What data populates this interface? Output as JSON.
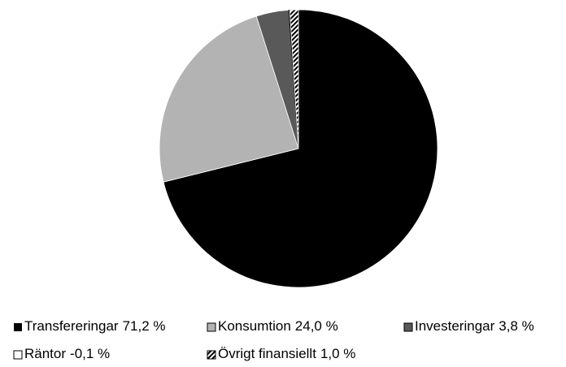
{
  "chart_data": {
    "type": "pie",
    "categories": [
      "Transfereringar",
      "Konsumtion",
      "Investeringar",
      "Räntor",
      "Övrigt finansiellt"
    ],
    "values": [
      71.2,
      24.0,
      3.8,
      -0.1,
      1.0
    ],
    "value_labels": [
      "71,2 %",
      "24,0 %",
      "3,8 %",
      "-0,1 %",
      "1,0 %"
    ],
    "fills": [
      "#000000",
      "#b3b3b3",
      "#595959",
      "#ffffff",
      "diagonal-hatch"
    ],
    "legend": "bottom"
  }
}
